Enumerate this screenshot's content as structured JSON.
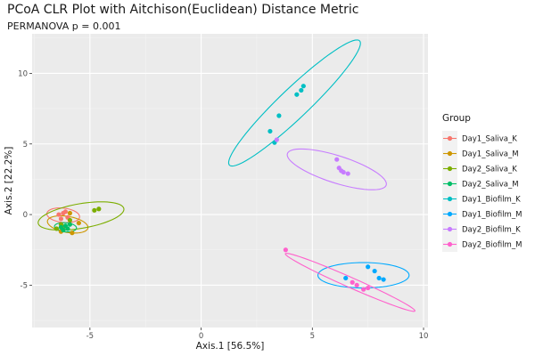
{
  "chart_data": {
    "type": "scatter",
    "title": "PCoA CLR Plot with Aitchison(Euclidean) Distance Metric",
    "subtitle": "PERMANOVA p = 0.001",
    "xlabel": "Axis.1   [56.5%]",
    "ylabel": "Axis.2   [22.2%]",
    "xlim": [
      -7.6,
      10.2
    ],
    "ylim": [
      -8.0,
      12.8
    ],
    "xticks": [
      -5,
      0,
      5,
      10
    ],
    "xtick_labels": [
      "-5",
      "0",
      "5",
      "10"
    ],
    "yticks": [
      -5,
      0,
      5,
      10
    ],
    "ytick_labels": [
      "-5",
      "0",
      "5",
      "10"
    ],
    "grid": true,
    "legend_position": "right",
    "legend_title": "Group",
    "series": [
      {
        "name": "Day1_Saliva_K",
        "color": "#F8766D",
        "points": [
          [
            -6.4,
            0.0
          ],
          [
            -6.2,
            0.1
          ],
          [
            -6.0,
            -0.2
          ],
          [
            -6.3,
            -0.3
          ],
          [
            -6.1,
            0.2
          ]
        ],
        "ellipse": {
          "cx": -6.2,
          "cy": -0.05,
          "rx": 0.75,
          "ry": 0.5,
          "angle": -15
        }
      },
      {
        "name": "Day1_Saliva_M",
        "color": "#CD9600",
        "points": [
          [
            -5.9,
            0.1
          ],
          [
            -6.2,
            -0.9
          ],
          [
            -5.8,
            -1.3
          ],
          [
            -5.5,
            -0.6
          ],
          [
            -6.3,
            -1.2
          ]
        ],
        "ellipse": {
          "cx": -6.0,
          "cy": -0.7,
          "rx": 0.95,
          "ry": 0.55,
          "angle": -20
        }
      },
      {
        "name": "Day2_Saliva_K",
        "color": "#7CAE00",
        "points": [
          [
            -4.8,
            0.3
          ],
          [
            -4.6,
            0.4
          ],
          [
            -6.3,
            -0.7
          ],
          [
            -6.5,
            -1.0
          ],
          [
            -5.9,
            -0.4
          ]
        ],
        "ellipse": {
          "cx": -5.4,
          "cy": -0.1,
          "rx": 2.0,
          "ry": 0.85,
          "angle": 17
        }
      },
      {
        "name": "Day2_Saliva_M",
        "color": "#00BE67",
        "points": [
          [
            -6.1,
            -0.8
          ],
          [
            -6.0,
            -1.0
          ],
          [
            -6.3,
            -0.9
          ],
          [
            -6.2,
            -1.1
          ],
          [
            -5.9,
            -0.7
          ]
        ],
        "ellipse": {
          "cx": -6.1,
          "cy": -0.9,
          "rx": 0.5,
          "ry": 0.32,
          "angle": -10
        }
      },
      {
        "name": "Day1_Biofilm_K",
        "color": "#00BFC4",
        "points": [
          [
            4.6,
            9.1
          ],
          [
            4.5,
            8.8
          ],
          [
            4.3,
            8.5
          ],
          [
            3.5,
            7.0
          ],
          [
            3.1,
            5.9
          ],
          [
            3.3,
            5.1
          ]
        ],
        "ellipse": {
          "cx": 4.2,
          "cy": 7.9,
          "rx": 5.3,
          "ry": 0.8,
          "angle": 57
        }
      },
      {
        "name": "Day1_Biofilm_M",
        "color": "#00A9FF",
        "points": [
          [
            7.5,
            -3.7
          ],
          [
            7.8,
            -4.0
          ],
          [
            8.0,
            -4.5
          ],
          [
            8.2,
            -4.6
          ],
          [
            6.5,
            -4.5
          ]
        ],
        "ellipse": {
          "cx": 7.3,
          "cy": -4.3,
          "rx": 2.05,
          "ry": 0.9,
          "angle": 0
        }
      },
      {
        "name": "Day2_Biofilm_K",
        "color": "#C77CFF",
        "points": [
          [
            6.1,
            3.9
          ],
          [
            6.2,
            3.3
          ],
          [
            6.4,
            3.0
          ],
          [
            6.6,
            2.9
          ],
          [
            6.3,
            3.1
          ],
          [
            3.4,
            5.3
          ]
        ],
        "ellipse": {
          "cx": 6.1,
          "cy": 3.2,
          "rx": 2.5,
          "ry": 0.9,
          "angle": -29
        }
      },
      {
        "name": "Day2_Biofilm_M",
        "color": "#FF61CC",
        "points": [
          [
            3.8,
            -2.5
          ],
          [
            6.8,
            -4.8
          ],
          [
            7.0,
            -5.0
          ],
          [
            7.3,
            -5.3
          ],
          [
            7.5,
            -5.2
          ]
        ],
        "ellipse": {
          "cx": 6.7,
          "cy": -4.8,
          "rx": 3.55,
          "ry": 0.32,
          "angle": -35
        }
      }
    ]
  }
}
